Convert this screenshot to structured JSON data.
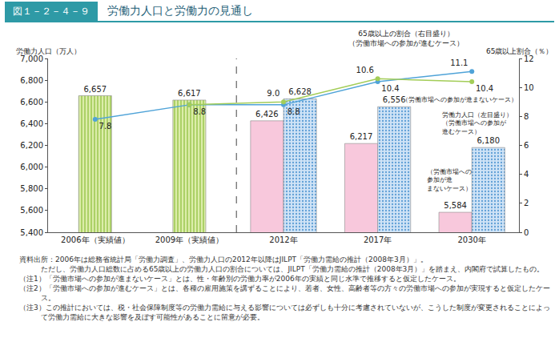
{
  "chart_data": {
    "type": "bar",
    "figure_label": "図１－２－４－９",
    "title": "労働力人口と労働力の見通し",
    "y_label": "労働力人口（万人）",
    "y2_label": "65歳以上割合（％）",
    "categories": [
      "2006年（実績値）",
      "2009年（実績値）",
      "2012年",
      "2017年",
      "2030年"
    ],
    "series": [
      {
        "type": "bar",
        "color": "#dcedaa",
        "marker": "vertical_stripes",
        "values": [
          6657,
          6617,
          null,
          null,
          null
        ],
        "value_labels": [
          "6,657",
          "6,617",
          null,
          null,
          null
        ]
      },
      {
        "type": "bar",
        "color": "#f8c8dc",
        "marker": "solid",
        "values": [
          null,
          null,
          6426,
          6217,
          5584
        ],
        "value_labels": [
          null,
          null,
          "6,426",
          "6,217",
          "5,584"
        ]
      },
      {
        "type": "bar",
        "color": "#cfe3f6",
        "marker": "dots",
        "values": [
          null,
          null,
          6628,
          6556,
          6180
        ],
        "value_labels": [
          null,
          null,
          "6,628",
          "6,556",
          "6,180"
        ]
      },
      {
        "type": "line",
        "axis": "y2",
        "color": "#4fa3d8",
        "marker": "circle",
        "values": [
          7.8,
          8.8,
          null,
          null,
          null
        ],
        "value_labels": [
          "7.8",
          "8.8",
          null,
          null,
          null
        ]
      },
      {
        "type": "line",
        "axis": "y2",
        "color": "#4fa3d8",
        "marker": "circle",
        "values": [
          null,
          8.8,
          8.8,
          10.4,
          11.1
        ],
        "value_labels": [
          null,
          null,
          "8.8",
          "10.4",
          "11.1"
        ]
      },
      {
        "type": "line",
        "axis": "y2",
        "color": "#a3cd58",
        "marker": "circle",
        "values": [
          null,
          8.8,
          9.0,
          10.6,
          10.4
        ],
        "value_labels": [
          null,
          null,
          "9.0",
          "10.6",
          "10.4"
        ]
      }
    ],
    "ylim": [
      5400,
      7000
    ],
    "yticks": [
      {
        "value": 5400,
        "label": "5,400"
      },
      {
        "value": 5600,
        "label": "5,600"
      },
      {
        "value": 5800,
        "label": "5,800"
      },
      {
        "value": 6000,
        "label": "6,000"
      },
      {
        "value": 6200,
        "label": "6,200"
      },
      {
        "value": 6400,
        "label": "6,400"
      },
      {
        "value": 6600,
        "label": "6,600"
      },
      {
        "value": 6800,
        "label": "6,800"
      },
      {
        "value": 7000,
        "label": "7,000"
      }
    ],
    "y2lim": [
      0,
      12
    ],
    "y2ticks": [
      0,
      2,
      4,
      6,
      8,
      10,
      12
    ],
    "grid": false,
    "data_labels": true,
    "annotations": [
      {
        "text": "65歳以上の割合（右目盛り）\n（労働市場への参加が進むケース）"
      },
      {
        "text": "（労働市場への参加が進まないケース）"
      },
      {
        "text": "労働力人口（左目盛り）\n（労働市場への参加が\n進むケース）"
      },
      {
        "text": "（労働市場への\n参加が進\nまないケース）"
      }
    ],
    "source": [
      "資料出所：2006年は総務省統計局「労働力調査」、労働力人口の2012年以降はJILPT「労働力需給の推計（2008年3月）」。",
      "ただし、労働力人口総数に占める65歳以上の労働力人口の割合については、JILPT「労働力需給の推計（2008年3月）」を踏まえ、内閣府で試算したもの。"
    ],
    "notes": [
      "（注1）「労働市場への参加が進まないケース」とは、性・年齢別の労働力率が2006年の実績と同じ水準で推移すると仮定したケース。",
      "（注2）「労働市場への参加が進むケース」とは、各種の雇用施策を講ずることにより、若者、女性、高齢者等の方々の労働市場への参加が実現すると仮定したケース。",
      "（注3）この推計においては、税・社会保障制度等の労働力需給に与える影響については必ずしも十分に考慮されていないが、こうした制度が変更されることによって労働力需給に大きな影響を及ぼす可能性があることに留意が必要。"
    ]
  }
}
